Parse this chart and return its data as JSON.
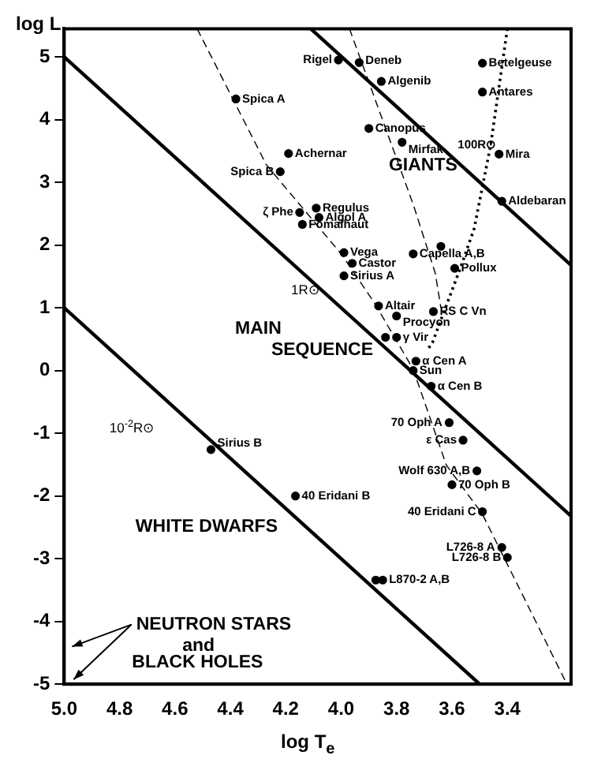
{
  "chart_data": {
    "type": "scatter",
    "xlabel": "log T$_{e}$",
    "ylabel": "log L",
    "xlim": [
      5.0,
      3.17
    ],
    "ylim": [
      -5,
      5.45
    ],
    "xticks": [
      {
        "value": 5,
        "label": "5.0"
      },
      4.8,
      4.6,
      4.4,
      4.2,
      {
        "value": 4,
        "label": "4.0"
      },
      3.8,
      3.6,
      3.4
    ],
    "yticks": [
      -5,
      -4,
      -3,
      -2,
      -1,
      0,
      1,
      2,
      3,
      4,
      5
    ],
    "grid": false,
    "legend": false,
    "series": [
      {
        "type": "scatter",
        "color": "#000000",
        "marker": "circle",
        "x": [
          4.01,
          3.935,
          3.855,
          4.38,
          3.9,
          3.78,
          3.49,
          3.49,
          3.43,
          4.19,
          4.22,
          3.42,
          4.09,
          4.15,
          4.08,
          4.14,
          3.99,
          3.96,
          3.74,
          3.64,
          3.59,
          3.99,
          3.865,
          3.667,
          3.8,
          3.84,
          3.8,
          3.73,
          3.74,
          3.675,
          3.61,
          3.56,
          3.51,
          3.6,
          4.47,
          4.165,
          3.49,
          3.42,
          3.4,
          3.875,
          3.85
        ],
        "values": [
          4.95,
          4.91,
          4.61,
          4.33,
          3.86,
          3.64,
          4.9,
          4.44,
          3.45,
          3.46,
          3.17,
          2.7,
          2.59,
          2.52,
          2.44,
          2.33,
          1.88,
          1.71,
          1.86,
          1.98,
          1.63,
          1.51,
          1.03,
          0.94,
          0.87,
          0.53,
          0.53,
          0.15,
          0.0,
          -0.25,
          -0.83,
          -1.11,
          -1.6,
          -1.82,
          -1.26,
          -2.0,
          -2.25,
          -2.82,
          -2.98,
          -3.34,
          -3.34
        ]
      },
      {
        "type": "line",
        "color": "#000000",
        "marker": "none",
        "line_style": "solid",
        "x": [
          5.0,
          3.5
        ],
        "values": [
          1.0,
          -5.0
        ]
      },
      {
        "type": "line",
        "color": "#000000",
        "marker": "none",
        "line_style": "solid",
        "x": [
          5.0,
          3.17
        ],
        "values": [
          5.0,
          -2.32
        ]
      },
      {
        "type": "line",
        "color": "#000000",
        "marker": "none",
        "line_style": "solid",
        "x": [
          4.11,
          3.17
        ],
        "values": [
          5.45,
          1.68
        ]
      },
      {
        "type": "line",
        "color": "#000000",
        "marker": "none",
        "line_style": "dashed",
        "x": [
          4.52,
          4.27,
          4.0,
          3.88,
          3.74,
          3.62,
          3.49,
          3.185
        ],
        "values": [
          5.45,
          3.28,
          1.86,
          1.08,
          0.02,
          -1.51,
          -2.29,
          -5.0
        ]
      },
      {
        "type": "line",
        "color": "#000000",
        "marker": "none",
        "line_style": "dashed",
        "x": [
          3.97,
          3.74,
          3.66,
          3.64
        ],
        "values": [
          5.45,
          2.65,
          1.55,
          1.0
        ]
      },
      {
        "type": "line",
        "color": "#000000",
        "marker": "none",
        "line_style": "dotted",
        "x": [
          3.4,
          3.46,
          3.52,
          3.57,
          3.67,
          3.69
        ],
        "values": [
          5.45,
          3.6,
          2.26,
          1.63,
          0.45,
          0.32
        ]
      }
    ],
    "annotations": [
      {
        "text": "Rigel",
        "x": 4.01,
        "y": 4.95
      },
      {
        "text": "Deneb",
        "x": 3.935,
        "y": 4.91
      },
      {
        "text": "Algenib",
        "x": 3.855,
        "y": 4.61
      },
      {
        "text": "Spica A",
        "x": 4.38,
        "y": 4.33
      },
      {
        "text": "Canopus",
        "x": 3.9,
        "y": 3.86
      },
      {
        "text": "Mirfak",
        "x": 3.78,
        "y": 3.64
      },
      {
        "text": "Betelgeuse",
        "x": 3.49,
        "y": 4.9
      },
      {
        "text": "Antares",
        "x": 3.49,
        "y": 4.44
      },
      {
        "text": "Mira",
        "x": 3.43,
        "y": 3.45
      },
      {
        "text": "Achernar",
        "x": 4.19,
        "y": 3.46
      },
      {
        "text": "Spica B",
        "x": 4.22,
        "y": 3.17
      },
      {
        "text": "Aldebaran",
        "x": 3.42,
        "y": 2.7
      },
      {
        "text": "Regulus",
        "x": 4.09,
        "y": 2.59
      },
      {
        "text": "ζ Phe",
        "x": 4.15,
        "y": 2.52
      },
      {
        "text": "Algol A",
        "x": 4.08,
        "y": 2.44
      },
      {
        "text": "Fomalhaut",
        "x": 4.14,
        "y": 2.33
      },
      {
        "text": "Vega",
        "x": 3.99,
        "y": 1.88
      },
      {
        "text": "Castor",
        "x": 3.96,
        "y": 1.71
      },
      {
        "text": "Capella A,B",
        "x": 3.74,
        "y": 1.86
      },
      {
        "text": "Pollux",
        "x": 3.59,
        "y": 1.63
      },
      {
        "text": "Sirius A",
        "x": 3.99,
        "y": 1.51
      },
      {
        "text": "Altair",
        "x": 3.865,
        "y": 1.03
      },
      {
        "text": "RS C Vn",
        "x": 3.667,
        "y": 0.94
      },
      {
        "text": "Procyon",
        "x": 3.8,
        "y": 0.87
      },
      {
        "text": "γ Vir",
        "x": 3.8,
        "y": 0.53
      },
      {
        "text": "α Cen A",
        "x": 3.73,
        "y": 0.15
      },
      {
        "text": "Sun",
        "x": 3.74,
        "y": 0.0
      },
      {
        "text": "α Cen B",
        "x": 3.675,
        "y": -0.25
      },
      {
        "text": "70 Oph A",
        "x": 3.61,
        "y": -0.83
      },
      {
        "text": "ε Cas",
        "x": 3.56,
        "y": -1.11
      },
      {
        "text": "Wolf 630 A,B",
        "x": 3.51,
        "y": -1.6
      },
      {
        "text": "70 Oph B",
        "x": 3.6,
        "y": -1.82
      },
      {
        "text": "Sirius B",
        "x": 4.47,
        "y": -1.26
      },
      {
        "text": "40 Eridani B",
        "x": 4.165,
        "y": -2.0
      },
      {
        "text": "40 Eridani C",
        "x": 3.49,
        "y": -2.25
      },
      {
        "text": "L726-8 A",
        "x": 3.42,
        "y": -2.82
      },
      {
        "text": "L726-8 B",
        "x": 3.4,
        "y": -2.98
      },
      {
        "text": "L870-2 A,B",
        "x": 3.85,
        "y": -3.34
      },
      {
        "text": "100R⊙",
        "x": 3.46,
        "y": 3.6
      },
      "1R⊙",
      "10$^{-2}$R⊙",
      "GIANTS",
      "MAIN",
      "SEQUENCE",
      "WHITE DWARFS",
      "NEUTRON STARS",
      "and",
      "BLACK HOLES"
    ]
  }
}
